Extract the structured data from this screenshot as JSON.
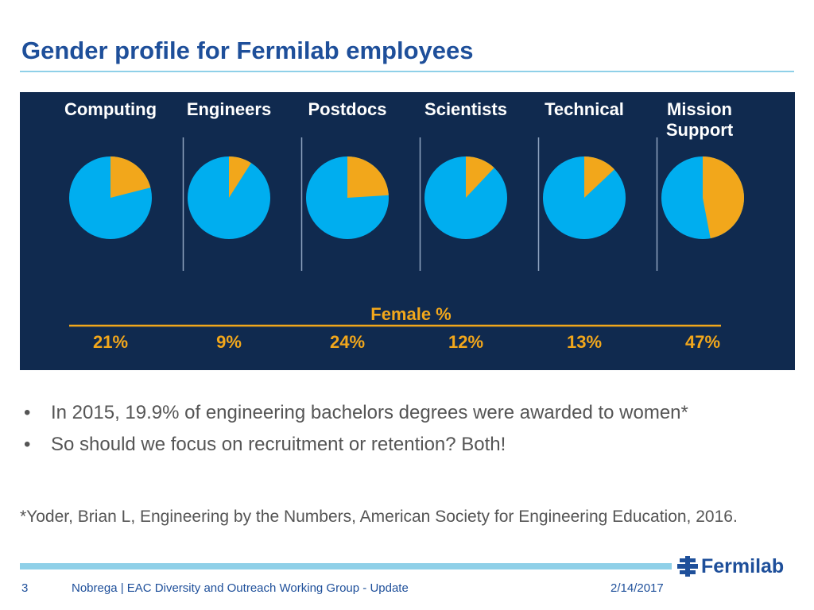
{
  "slide": {
    "title": "Gender profile for Fermilab employees"
  },
  "chart_data": {
    "type": "pie",
    "axis_title": "Female %",
    "categories": [
      {
        "label_lines": [
          "Computing"
        ],
        "female_pct": 21,
        "pct_label": "21%"
      },
      {
        "label_lines": [
          "Engineers"
        ],
        "female_pct": 9,
        "pct_label": "9%"
      },
      {
        "label_lines": [
          "Postdocs"
        ],
        "female_pct": 24,
        "pct_label": "24%"
      },
      {
        "label_lines": [
          "Scientists"
        ],
        "female_pct": 12,
        "pct_label": "12%"
      },
      {
        "label_lines": [
          "Technical"
        ],
        "female_pct": 13,
        "pct_label": "13%"
      },
      {
        "label_lines": [
          "Mission",
          "Support"
        ],
        "female_pct": 47,
        "pct_label": "47%"
      }
    ],
    "colors": {
      "panel_bg": "#102a4f",
      "female": "#f2a71b",
      "male": "#00aeef",
      "divider": "#8fa4c0",
      "label": "#ffffff"
    }
  },
  "bullets": [
    "In 2015, 19.9% of engineering bachelors degrees were awarded to women*",
    "So should we focus on recruitment or retention? Both!"
  ],
  "bullet_symbol": "•",
  "citation": "*Yoder, Brian L, Engineering by the Numbers, American Society for Engineering Education, 2016.",
  "footer": {
    "page_number": "3",
    "presenter": "Nobrega | EAC Diversity and Outreach Working Group - Update",
    "date": "2/14/2017",
    "logo_text": "Fermilab",
    "logo_icon": "fermilab-logo-icon"
  }
}
